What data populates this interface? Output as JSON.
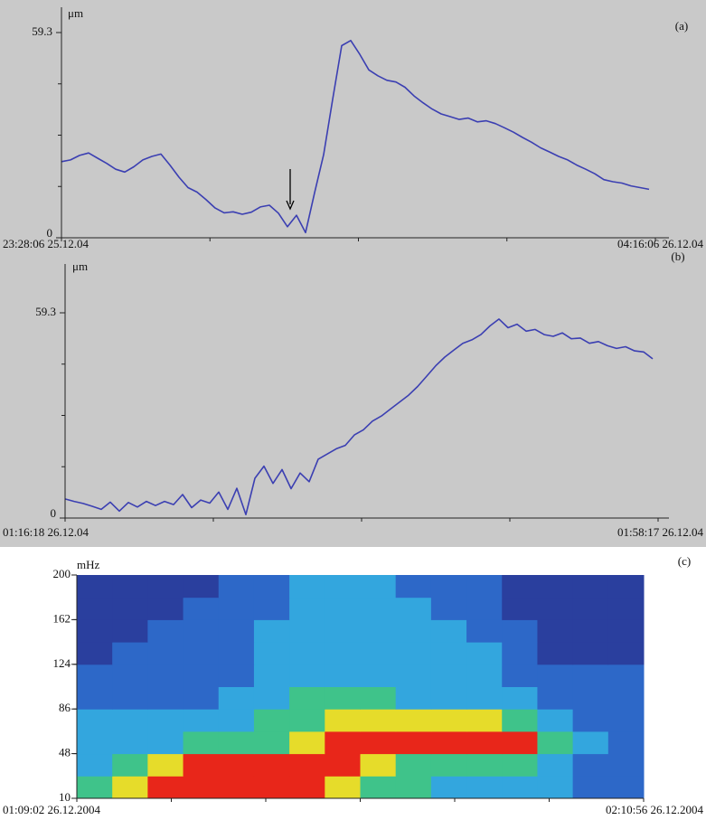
{
  "chart_data": [
    {
      "type": "line",
      "tag": "(a)",
      "ylabel": "μm",
      "xlabels": [
        "23:28:06 25.12.04",
        "04:16:06 26.12.04"
      ],
      "color": "#3b3fb2",
      "ylim": [
        0,
        59.3
      ],
      "yticks": [
        0,
        59.3
      ],
      "values": [
        22,
        22.5,
        23.8,
        24.5,
        23,
        21.5,
        19.8,
        19,
        20.5,
        22.5,
        23.5,
        24.2,
        21,
        17.5,
        14.5,
        13.2,
        11,
        8.6,
        7.2,
        7.5,
        6.8,
        7.4,
        8.9,
        9.4,
        7.1,
        3.2,
        6.5,
        1.5,
        13,
        24,
        40,
        55.5,
        57,
        53,
        48.5,
        46.8,
        45.5,
        45,
        43.5,
        41,
        39,
        37.2,
        35.8,
        35,
        34.2,
        34.6,
        33.5,
        33.8,
        33,
        31.8,
        30.5,
        29,
        27.6,
        26,
        24.8,
        23.5,
        22.5,
        21,
        19.8,
        18.5,
        16.8,
        16.2,
        15.8,
        15,
        14.5,
        14
      ]
    },
    {
      "type": "line",
      "tag": "(b)",
      "ylabel": "μm",
      "xlabels": [
        "01:16:18 26.12.04",
        "01:58:17 26.12.04"
      ],
      "color": "#3b3fb2",
      "ylim": [
        0,
        59.3
      ],
      "yticks": [
        0,
        59.3
      ],
      "values": [
        5.5,
        4.8,
        4.2,
        3.4,
        2.5,
        4.6,
        2,
        4.5,
        3.2,
        4.8,
        3.6,
        4.8,
        3.9,
        6.8,
        3,
        5.2,
        4.3,
        7.5,
        2.5,
        8.6,
        1,
        11.5,
        15,
        10,
        14,
        8.5,
        13,
        10.5,
        17,
        18.5,
        20,
        21,
        24,
        25.5,
        28,
        29.5,
        31.5,
        33.5,
        35.5,
        38,
        41,
        44,
        46.5,
        48.5,
        50.5,
        51.5,
        53,
        55.5,
        57.5,
        55,
        56,
        54,
        54.5,
        53,
        52.5,
        53.5,
        51.8,
        52,
        50.5,
        51,
        49.8,
        49,
        49.5,
        48.3,
        48,
        46
      ]
    },
    {
      "type": "heatmap",
      "tag": "(c)",
      "ylabel": "mHz",
      "xlabels": [
        "01:09:02 26.12.2004",
        "02:10:56 26.12.2004"
      ],
      "ylim": [
        10,
        200
      ],
      "yticks": [
        10,
        48,
        86,
        124,
        162,
        200
      ],
      "colors": [
        "#2a3f9e",
        "#2d68c8",
        "#33a6de",
        "#3fc38a",
        "#e6dc2a",
        "#e8261a"
      ],
      "z": [
        [
          3,
          4,
          5,
          5,
          5,
          5,
          5,
          4,
          3,
          3,
          2,
          2,
          2,
          2,
          1,
          1
        ],
        [
          2,
          3,
          4,
          5,
          5,
          5,
          5,
          5,
          4,
          3,
          3,
          3,
          3,
          2,
          1,
          1
        ],
        [
          2,
          2,
          2,
          3,
          3,
          3,
          4,
          5,
          5,
          5,
          5,
          5,
          5,
          3,
          2,
          1
        ],
        [
          2,
          2,
          2,
          2,
          2,
          3,
          3,
          4,
          4,
          4,
          4,
          4,
          3,
          2,
          1,
          1
        ],
        [
          1,
          1,
          1,
          1,
          2,
          2,
          3,
          3,
          3,
          2,
          2,
          2,
          2,
          1,
          1,
          1
        ],
        [
          1,
          1,
          1,
          1,
          1,
          2,
          2,
          2,
          2,
          2,
          2,
          2,
          1,
          1,
          1,
          1
        ],
        [
          0,
          1,
          1,
          1,
          1,
          2,
          2,
          2,
          2,
          2,
          2,
          2,
          1,
          0,
          0,
          0
        ],
        [
          0,
          0,
          1,
          1,
          1,
          2,
          2,
          2,
          2,
          2,
          2,
          1,
          1,
          0,
          0,
          0
        ],
        [
          0,
          0,
          0,
          1,
          1,
          1,
          2,
          2,
          2,
          2,
          1,
          1,
          0,
          0,
          0,
          0
        ],
        [
          0,
          0,
          0,
          0,
          1,
          1,
          2,
          2,
          2,
          1,
          1,
          1,
          0,
          0,
          0,
          0
        ]
      ]
    }
  ]
}
